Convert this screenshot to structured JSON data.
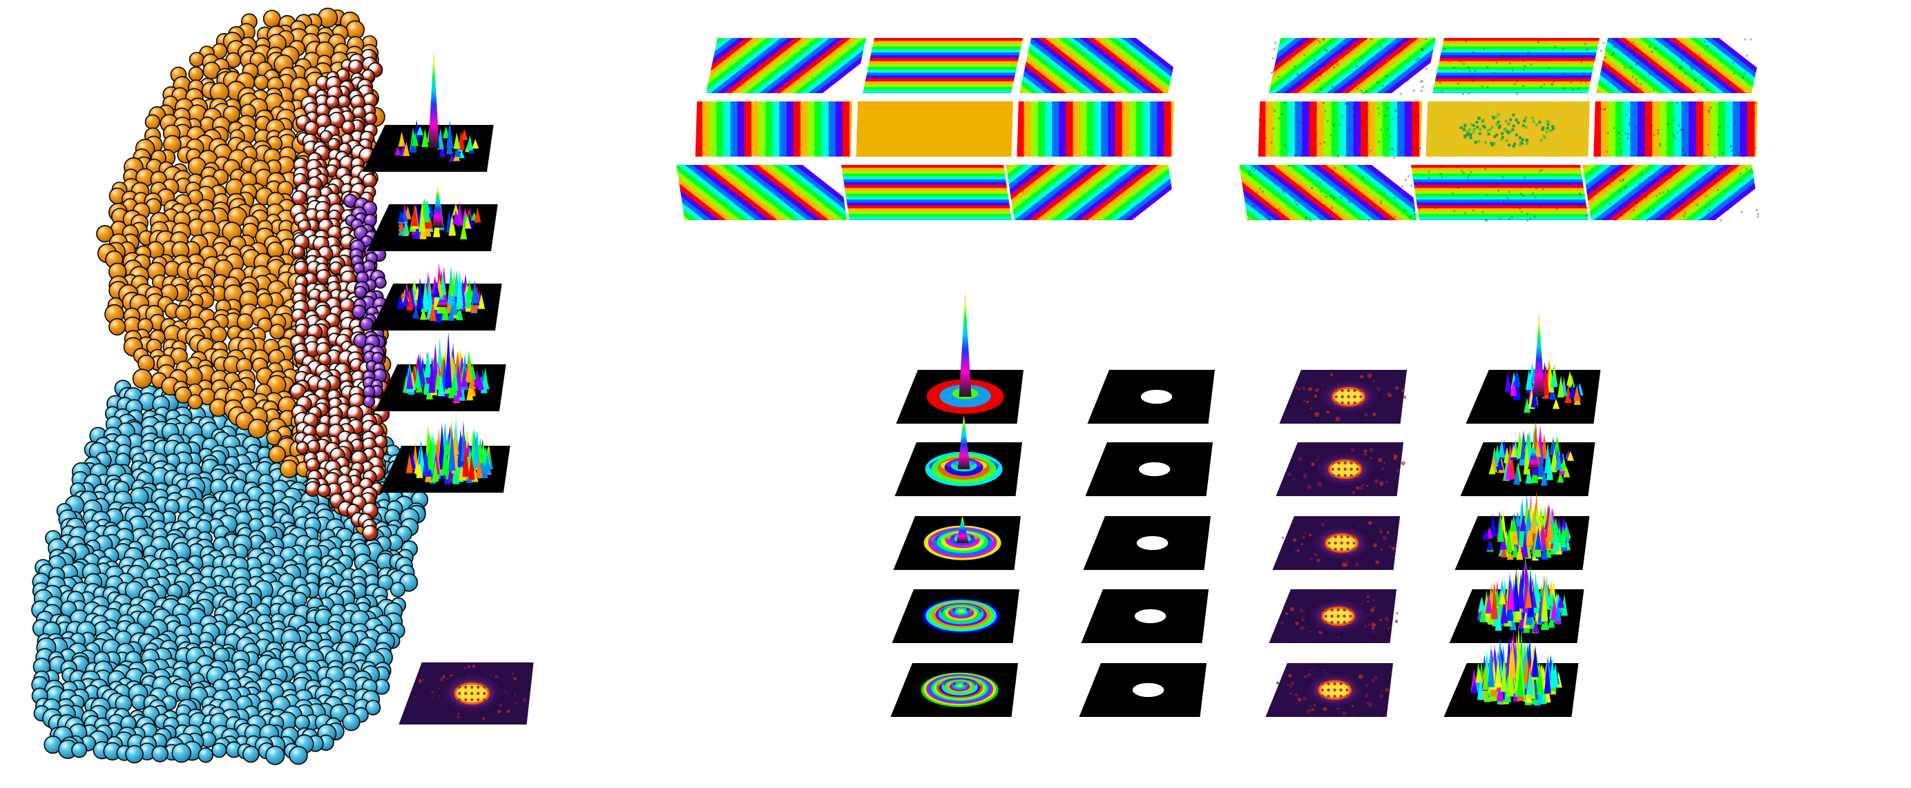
{
  "figure": {
    "background": "#ffffff",
    "atom_colors": {
      "substrate": "#4fc3e8",
      "cluster": "#f5a020",
      "cluster_dark": "#c0391b",
      "interface": "#9a4fe0",
      "outline": "#000000"
    },
    "panel_colors": {
      "flat_phase": "#f0b000",
      "intensity_low": "#240a40",
      "intensity_mid": "#e0401a",
      "intensity_high": "#fff47a",
      "aperture_bg": "#000000",
      "aperture_disk": "#ffffff"
    },
    "rainbow": [
      "#ff0000",
      "#ff8000",
      "#ffff00",
      "#00ff00",
      "#00ffff",
      "#0000ff",
      "#ff00ff",
      "#ff0000"
    ],
    "structure": {
      "stacked_surface_plots": 5,
      "diffraction_pattern": 1
    },
    "phase_grids": [
      {
        "id": "ideal",
        "cells": [
          {
            "fringe": "diagonal-down"
          },
          {
            "fringe": "horizontal"
          },
          {
            "fringe": "diagonal-up"
          },
          {
            "fringe": "vertical"
          },
          {
            "fringe": "flat"
          },
          {
            "fringe": "vertical"
          },
          {
            "fringe": "diagonal-up"
          },
          {
            "fringe": "horizontal"
          },
          {
            "fringe": "diagonal-down"
          }
        ]
      },
      {
        "id": "measured",
        "cells": [
          {
            "fringe": "diagonal-down"
          },
          {
            "fringe": "horizontal"
          },
          {
            "fringe": "diagonal-up"
          },
          {
            "fringe": "vertical"
          },
          {
            "fringe": "noise"
          },
          {
            "fringe": "vertical"
          },
          {
            "fringe": "diagonal-up"
          },
          {
            "fringe": "horizontal"
          },
          {
            "fringe": "diagonal-down"
          }
        ]
      }
    ],
    "columns": [
      {
        "id": "simulated-probe",
        "kind": "rainbow-surface",
        "rows": 5
      },
      {
        "id": "aperture",
        "kind": "aperture",
        "rows": 5
      },
      {
        "id": "diffraction",
        "kind": "diffraction",
        "rows": 5
      },
      {
        "id": "reconstructed-probe",
        "kind": "rainbow-surface-noisy",
        "rows": 5
      }
    ]
  }
}
